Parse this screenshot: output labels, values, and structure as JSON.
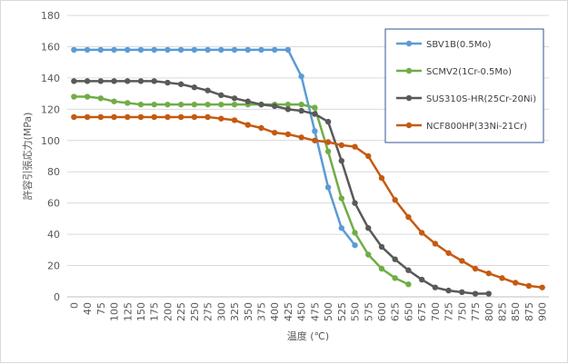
{
  "chart_data": {
    "type": "line",
    "title": "",
    "xlabel": "温度 (℃)",
    "ylabel": "許容引張応力(MPa)",
    "ylim": [
      0,
      180
    ],
    "yticks": [
      0,
      20,
      40,
      60,
      80,
      100,
      120,
      140,
      160,
      180
    ],
    "x": [
      0,
      40,
      75,
      100,
      125,
      150,
      175,
      200,
      225,
      250,
      275,
      300,
      325,
      350,
      375,
      400,
      425,
      450,
      475,
      500,
      525,
      550,
      575,
      600,
      625,
      650,
      675,
      700,
      725,
      750,
      775,
      800,
      825,
      850,
      875,
      900
    ],
    "grid": "horizontal",
    "legend_position": "right",
    "series": [
      {
        "name": "SBV1B(0.5Mo)",
        "color": "#5b9bd5",
        "values": [
          158,
          158,
          158,
          158,
          158,
          158,
          158,
          158,
          158,
          158,
          158,
          158,
          158,
          158,
          158,
          158,
          158,
          141,
          106,
          70,
          44,
          33,
          null,
          null,
          null,
          null,
          null,
          null,
          null,
          null,
          null,
          null,
          null,
          null,
          null,
          null
        ]
      },
      {
        "name": "SCMV2(1Cr-0.5Mo)",
        "color": "#70ad47",
        "values": [
          128,
          128,
          127,
          125,
          124,
          123,
          123,
          123,
          123,
          123,
          123,
          123,
          123,
          123,
          123,
          123,
          123,
          123,
          121,
          93,
          63,
          41,
          27,
          18,
          12,
          8,
          null,
          null,
          null,
          null,
          null,
          null,
          null,
          null,
          null,
          null
        ]
      },
      {
        "name": "SUS310S-HR(25Cr-20Ni)",
        "color": "#595959",
        "values": [
          138,
          138,
          138,
          138,
          138,
          138,
          138,
          137,
          136,
          134,
          132,
          129,
          127,
          125,
          123,
          122,
          120,
          119,
          117,
          112,
          87,
          60,
          44,
          32,
          24,
          17,
          11,
          6,
          4,
          3,
          2,
          2,
          null,
          null,
          null,
          null
        ]
      },
      {
        "name": "NCF800HP(33Ni-21Cr)",
        "color": "#c55a11",
        "values": [
          115,
          115,
          115,
          115,
          115,
          115,
          115,
          115,
          115,
          115,
          115,
          114,
          113,
          110,
          108,
          105,
          104,
          102,
          100,
          99,
          97,
          96,
          90,
          76,
          62,
          51,
          41,
          34,
          28,
          23,
          18,
          15,
          12,
          9,
          7,
          6
        ]
      }
    ]
  }
}
